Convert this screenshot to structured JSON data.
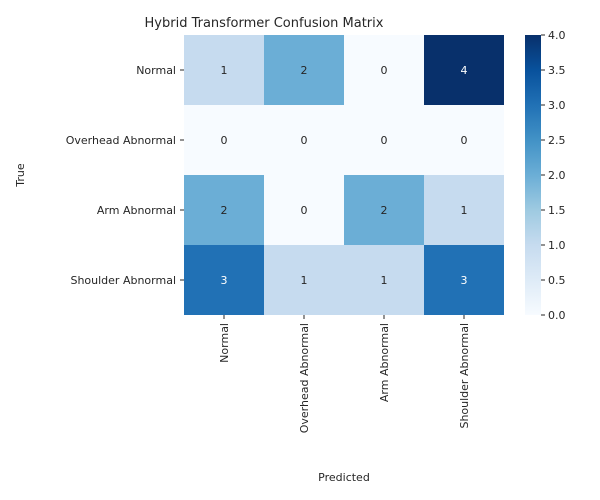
{
  "chart_data": {
    "type": "heatmap",
    "title": "Hybrid Transformer Confusion Matrix",
    "xlabel": "Predicted",
    "ylabel": "True",
    "x_categories": [
      "Normal",
      "Overhead Abnormal",
      "Arm Abnormal",
      "Shoulder Abnormal"
    ],
    "y_categories": [
      "Normal",
      "Overhead Abnormal",
      "Arm Abnormal",
      "Shoulder Abnormal"
    ],
    "values": [
      [
        1,
        2,
        0,
        4
      ],
      [
        0,
        0,
        0,
        0
      ],
      [
        2,
        0,
        2,
        1
      ],
      [
        3,
        1,
        1,
        3
      ]
    ],
    "colorbar": {
      "range": [
        0,
        4
      ],
      "ticks": [
        "0.0",
        "0.5",
        "1.0",
        "1.5",
        "2.0",
        "2.5",
        "3.0",
        "3.5",
        "4.0"
      ],
      "colormap": "Blues"
    },
    "colors": {
      "low": "#f7fbff",
      "high": "#08306b",
      "text_light": "#ffffff",
      "text_dark": "#262626"
    }
  }
}
